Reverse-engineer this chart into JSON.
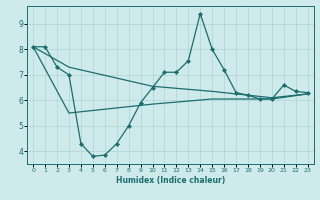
{
  "xlabel": "Humidex (Indice chaleur)",
  "ylabel": "",
  "bg_color": "#ceeaea",
  "line_color": "#1a6e6e",
  "grid_color": "#add4d4",
  "xlim": [
    -0.5,
    23.5
  ],
  "ylim": [
    3.5,
    9.7
  ],
  "xticks": [
    0,
    1,
    2,
    3,
    4,
    5,
    6,
    7,
    8,
    9,
    10,
    11,
    12,
    13,
    14,
    15,
    16,
    17,
    18,
    19,
    20,
    21,
    22,
    23
  ],
  "yticks": [
    4,
    5,
    6,
    7,
    8,
    9
  ],
  "line1_x": [
    0,
    1,
    2,
    3,
    4,
    5,
    6,
    7,
    8,
    9,
    10,
    11,
    12,
    13,
    14,
    15,
    16,
    17,
    18,
    19,
    20,
    21,
    22,
    23
  ],
  "line1_y": [
    8.1,
    8.1,
    7.3,
    7.0,
    4.3,
    3.8,
    3.85,
    4.3,
    5.0,
    5.9,
    6.5,
    7.1,
    7.1,
    7.55,
    9.4,
    8.0,
    7.2,
    6.3,
    6.2,
    6.05,
    6.05,
    6.6,
    6.35,
    6.3
  ],
  "line2_x": [
    0,
    3,
    10,
    15,
    20,
    23
  ],
  "line2_y": [
    8.1,
    7.3,
    6.55,
    6.35,
    6.1,
    6.25
  ],
  "line3_x": [
    0,
    3,
    10,
    15,
    20,
    23
  ],
  "line3_y": [
    8.1,
    5.5,
    5.85,
    6.05,
    6.05,
    6.25
  ]
}
